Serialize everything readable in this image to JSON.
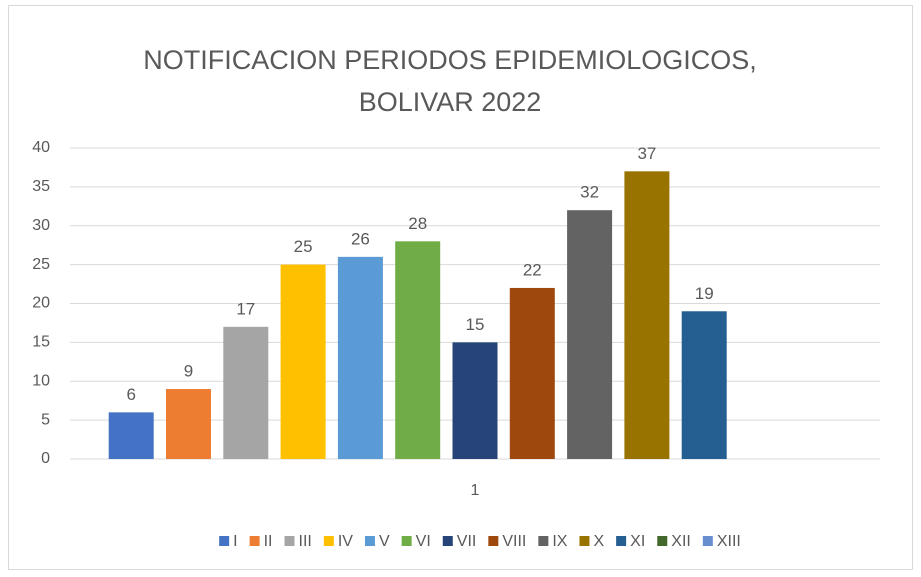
{
  "chart_data": {
    "type": "bar",
    "title": [
      "NOTIFICACION PERIODOS EPIDEMIOLOGICOS,",
      "BOLIVAR 2022"
    ],
    "categories": [
      "1"
    ],
    "series": [
      {
        "name": "I",
        "color": "#4472c4",
        "values": [
          6
        ]
      },
      {
        "name": "II",
        "color": "#ed7d31",
        "values": [
          9
        ]
      },
      {
        "name": "III",
        "color": "#a5a5a5",
        "values": [
          17
        ]
      },
      {
        "name": "IV",
        "color": "#ffc000",
        "values": [
          25
        ]
      },
      {
        "name": "V",
        "color": "#5b9bd5",
        "values": [
          26
        ]
      },
      {
        "name": "VI",
        "color": "#70ad47",
        "values": [
          28
        ]
      },
      {
        "name": "VII",
        "color": "#264478",
        "values": [
          15
        ]
      },
      {
        "name": "VIII",
        "color": "#9e480e",
        "values": [
          22
        ]
      },
      {
        "name": "IX",
        "color": "#636363",
        "values": [
          32
        ]
      },
      {
        "name": "X",
        "color": "#997300",
        "values": [
          37
        ]
      },
      {
        "name": "XI",
        "color": "#255e91",
        "values": [
          19
        ]
      },
      {
        "name": "XII",
        "color": "#43682b",
        "values": [
          null
        ]
      },
      {
        "name": "XIII",
        "color": "#698ed0",
        "values": [
          null
        ]
      }
    ],
    "ylim": [
      0,
      40
    ],
    "yticks": [
      0,
      5,
      10,
      15,
      20,
      25,
      30,
      35,
      40
    ],
    "grid": true,
    "legend": "bottom",
    "data_labels": true
  }
}
